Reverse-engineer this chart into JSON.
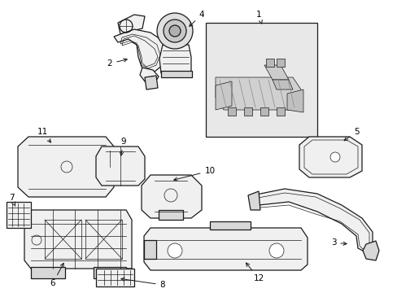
{
  "background_color": "#ffffff",
  "line_color": "#1a1a1a",
  "fill_color": "#f0f0f0",
  "dark_fill": "#d8d8d8",
  "box_fill": "#e8e8e8",
  "figsize": [
    4.89,
    3.6
  ],
  "dpi": 100,
  "lw": 0.9,
  "tlw": 0.5
}
